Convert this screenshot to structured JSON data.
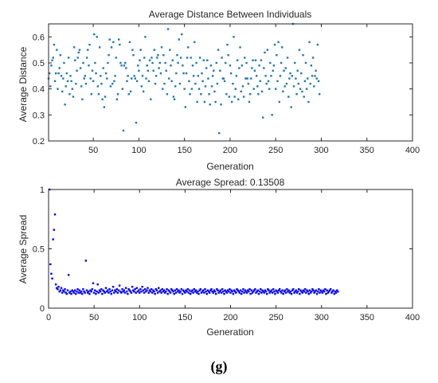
{
  "figure_label": "(g)",
  "chart_data": [
    {
      "type": "scatter",
      "title": "Average Distance Between Individuals",
      "xlabel": "Generation",
      "ylabel": "Average Distance",
      "xlim": [
        1,
        400
      ],
      "ylim": [
        0.2,
        0.65
      ],
      "xticks": [
        50,
        100,
        150,
        200,
        250,
        300,
        350,
        400
      ],
      "yticks": [
        0.2,
        0.3,
        0.4,
        0.5,
        0.6
      ],
      "ytick_labels": [
        "0.2",
        "0.3",
        "0.4",
        "0.5",
        "0.6"
      ],
      "grid": false,
      "series": [
        {
          "color": "#1f77b4",
          "x_start": 1,
          "x_step": 1,
          "y": [
            0.44,
            0.46,
            0.41,
            0.49,
            0.51,
            0.52,
            0.57,
            0.43,
            0.46,
            0.55,
            0.4,
            0.46,
            0.48,
            0.53,
            0.45,
            0.39,
            0.44,
            0.5,
            0.34,
            0.41,
            0.46,
            0.43,
            0.52,
            0.38,
            0.45,
            0.43,
            0.4,
            0.37,
            0.56,
            0.51,
            0.42,
            0.47,
            0.52,
            0.54,
            0.55,
            0.48,
            0.41,
            0.36,
            0.5,
            0.44,
            0.45,
            0.42,
            0.52,
            0.55,
            0.49,
            0.57,
            0.44,
            0.38,
            0.47,
            0.43,
            0.61,
            0.5,
            0.46,
            0.6,
            0.41,
            0.38,
            0.56,
            0.45,
            0.42,
            0.36,
            0.48,
            0.33,
            0.37,
            0.46,
            0.44,
            0.5,
            0.53,
            0.59,
            0.41,
            0.56,
            0.42,
            0.58,
            0.43,
            0.45,
            0.52,
            0.36,
            0.38,
            0.59,
            0.57,
            0.5,
            0.49,
            0.4,
            0.24,
            0.49,
            0.5,
            0.48,
            0.43,
            0.45,
            0.38,
            0.58,
            0.39,
            0.44,
            0.55,
            0.53,
            0.45,
            0.44,
            0.27,
            0.43,
            0.49,
            0.47,
            0.51,
            0.55,
            0.41,
            0.45,
            0.39,
            0.52,
            0.6,
            0.44,
            0.49,
            0.47,
            0.43,
            0.51,
            0.36,
            0.52,
            0.5,
            0.47,
            0.55,
            0.42,
            0.45,
            0.52,
            0.53,
            0.48,
            0.5,
            0.46,
            0.56,
            0.4,
            0.53,
            0.42,
            0.5,
            0.47,
            0.38,
            0.63,
            0.44,
            0.55,
            0.49,
            0.43,
            0.51,
            0.37,
            0.36,
            0.41,
            0.46,
            0.53,
            0.5,
            0.59,
            0.42,
            0.52,
            0.61,
            0.49,
            0.46,
            0.4,
            0.33,
            0.46,
            0.52,
            0.56,
            0.43,
            0.38,
            0.52,
            0.4,
            0.49,
            0.45,
            0.58,
            0.42,
            0.5,
            0.35,
            0.45,
            0.4,
            0.52,
            0.38,
            0.46,
            0.43,
            0.51,
            0.35,
            0.41,
            0.48,
            0.51,
            0.44,
            0.38,
            0.34,
            0.49,
            0.41,
            0.45,
            0.47,
            0.39,
            0.35,
            0.5,
            0.42,
            0.55,
            0.23,
            0.47,
            0.34,
            0.52,
            0.44,
            0.44,
            0.43,
            0.5,
            0.38,
            0.57,
            0.53,
            0.37,
            0.49,
            0.46,
            0.35,
            0.42,
            0.6,
            0.37,
            0.4,
            0.45,
            0.51,
            0.36,
            0.48,
            0.56,
            0.39,
            0.49,
            0.41,
            0.37,
            0.52,
            0.44,
            0.5,
            0.44,
            0.42,
            0.35,
            0.38,
            0.44,
            0.48,
            0.51,
            0.4,
            0.47,
            0.51,
            0.45,
            0.41,
            0.38,
            0.49,
            0.43,
            0.51,
            0.39,
            0.29,
            0.48,
            0.54,
            0.45,
            0.42,
            0.55,
            0.43,
            0.4,
            0.5,
            0.45,
            0.3,
            0.47,
            0.49,
            0.57,
            0.4,
            0.53,
            0.43,
            0.58,
            0.35,
            0.45,
            0.5,
            0.56,
            0.39,
            0.47,
            0.41,
            0.48,
            0.42,
            0.52,
            0.37,
            0.44,
            0.46,
            0.33,
            0.45,
            0.65,
            0.41,
            0.5,
            0.44,
            0.38,
            0.47,
            0.42,
            0.55,
            0.4,
            0.46,
            0.39,
            0.53,
            0.37,
            0.43,
            0.5,
            0.4,
            0.44,
            0.35,
            0.58,
            0.42,
            0.49,
            0.45,
            0.52,
            0.41,
            0.45,
            0.47,
            0.44,
            0.57,
            0.43,
            0.38
          ]
        }
      ]
    },
    {
      "type": "scatter",
      "title": "Average Spread: 0.13508",
      "xlabel": "Generation",
      "ylabel": "Average Spread",
      "xlim": [
        0,
        400
      ],
      "ylim": [
        0,
        1
      ],
      "xticks": [
        0,
        50,
        100,
        150,
        200,
        250,
        300,
        350,
        400
      ],
      "yticks": [
        0,
        0.5,
        1
      ],
      "ytick_labels": [
        "0",
        "0.5",
        "1"
      ],
      "grid": false,
      "series": [
        {
          "color": "#0000ff",
          "x_start": 1,
          "x_step": 1,
          "y": [
            1.0,
            0.37,
            0.29,
            0.25,
            0.58,
            0.66,
            0.79,
            0.2,
            0.17,
            0.16,
            0.18,
            0.14,
            0.15,
            0.17,
            0.13,
            0.15,
            0.14,
            0.16,
            0.13,
            0.12,
            0.15,
            0.28,
            0.13,
            0.14,
            0.12,
            0.15,
            0.14,
            0.13,
            0.15,
            0.12,
            0.14,
            0.16,
            0.13,
            0.15,
            0.13,
            0.14,
            0.12,
            0.16,
            0.14,
            0.13,
            0.4,
            0.15,
            0.13,
            0.14,
            0.12,
            0.15,
            0.14,
            0.16,
            0.21,
            0.13,
            0.15,
            0.12,
            0.14,
            0.2,
            0.13,
            0.15,
            0.14,
            0.16,
            0.12,
            0.15,
            0.14,
            0.13,
            0.17,
            0.14,
            0.15,
            0.13,
            0.16,
            0.14,
            0.12,
            0.15,
            0.18,
            0.13,
            0.15,
            0.14,
            0.16,
            0.13,
            0.15,
            0.19,
            0.14,
            0.13,
            0.16,
            0.14,
            0.15,
            0.13,
            0.17,
            0.14,
            0.12,
            0.16,
            0.15,
            0.14,
            0.13,
            0.18,
            0.15,
            0.14,
            0.16,
            0.13,
            0.17,
            0.14,
            0.15,
            0.13,
            0.16,
            0.14,
            0.18,
            0.15,
            0.13,
            0.16,
            0.14,
            0.15,
            0.17,
            0.13,
            0.15,
            0.14,
            0.16,
            0.13,
            0.15,
            0.14,
            0.12,
            0.16,
            0.15,
            0.13,
            0.17,
            0.14,
            0.15,
            0.13,
            0.16,
            0.14,
            0.15,
            0.13,
            0.14,
            0.16,
            0.12,
            0.15,
            0.14,
            0.13,
            0.16,
            0.15,
            0.14,
            0.12,
            0.15,
            0.13,
            0.16,
            0.14,
            0.15,
            0.13,
            0.14,
            0.16,
            0.12,
            0.15,
            0.14,
            0.13,
            0.15,
            0.14,
            0.16,
            0.13,
            0.15,
            0.12,
            0.14,
            0.15,
            0.13,
            0.16,
            0.14,
            0.15,
            0.13,
            0.14,
            0.12,
            0.15,
            0.16,
            0.13,
            0.14,
            0.15,
            0.13,
            0.16,
            0.14,
            0.12,
            0.15,
            0.14,
            0.13,
            0.15,
            0.16,
            0.14,
            0.13,
            0.15,
            0.14,
            0.12,
            0.16,
            0.15,
            0.13,
            0.14,
            0.15,
            0.13,
            0.16,
            0.14,
            0.12,
            0.15,
            0.14,
            0.13,
            0.15,
            0.14,
            0.16,
            0.13,
            0.15,
            0.14,
            0.12,
            0.15,
            0.14,
            0.13,
            0.16,
            0.15,
            0.14,
            0.13,
            0.15,
            0.12,
            0.14,
            0.16,
            0.13,
            0.15,
            0.14,
            0.13,
            0.15,
            0.14,
            0.16,
            0.12,
            0.15,
            0.13,
            0.14,
            0.15,
            0.16,
            0.13,
            0.14,
            0.15,
            0.12,
            0.14,
            0.16,
            0.13,
            0.15,
            0.14,
            0.13,
            0.15,
            0.14,
            0.12,
            0.16,
            0.15,
            0.13,
            0.14,
            0.15,
            0.13,
            0.16,
            0.14,
            0.12,
            0.15,
            0.14,
            0.13,
            0.15,
            0.16,
            0.14,
            0.13,
            0.15,
            0.12,
            0.14,
            0.15,
            0.13,
            0.16,
            0.14,
            0.15,
            0.13,
            0.14,
            0.12,
            0.15,
            0.16,
            0.13,
            0.14,
            0.15,
            0.13,
            0.14,
            0.16,
            0.12,
            0.15,
            0.14,
            0.13,
            0.15,
            0.14,
            0.16,
            0.13,
            0.15,
            0.14,
            0.12,
            0.15,
            0.13,
            0.14,
            0.16,
            0.15,
            0.13,
            0.14,
            0.15,
            0.12,
            0.14,
            0.16,
            0.13,
            0.15,
            0.14,
            0.13,
            0.15,
            0.14,
            0.16,
            0.12,
            0.15,
            0.13,
            0.14,
            0.15,
            0.16,
            0.13,
            0.14,
            0.15,
            0.12,
            0.14,
            0.13,
            0.15,
            0.14
          ]
        }
      ]
    }
  ]
}
